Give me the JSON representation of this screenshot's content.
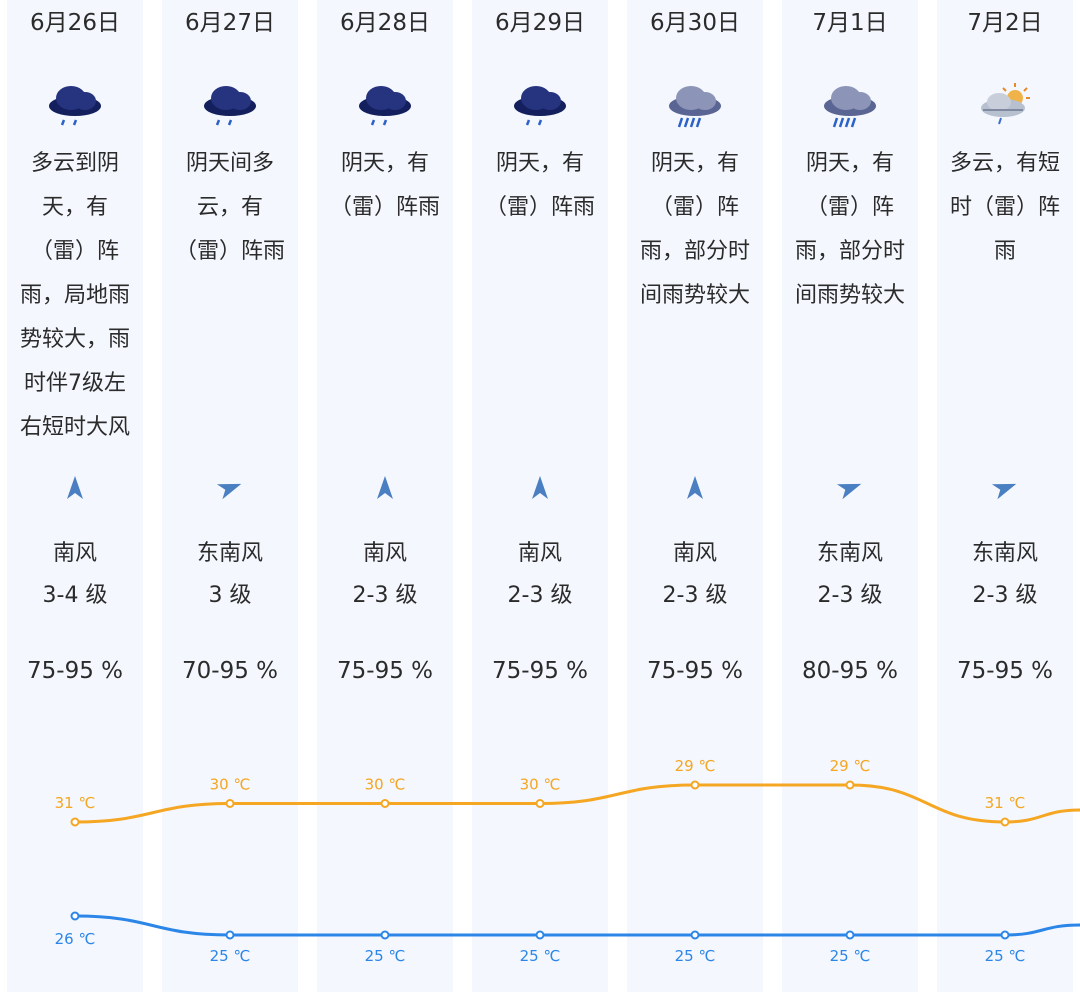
{
  "days": [
    {
      "date": "6月26日",
      "icon": "rain-cloud-icon",
      "desc": [
        "多云到阴",
        "天，有",
        "（雷）阵",
        "雨，局地雨",
        "势较大，雨",
        "时伴7级左",
        "右短时大风"
      ],
      "arrow_deg": 0,
      "wind_dir": "南风",
      "wind_level": "3-4 级",
      "humidity": "75-95 %"
    },
    {
      "date": "6月27日",
      "icon": "rain-cloud-icon",
      "desc": [
        "阴天间多",
        "云，有",
        "（雷）阵雨"
      ],
      "arrow_deg": 70,
      "wind_dir": "东南风",
      "wind_level": "3 级",
      "humidity": "70-95 %"
    },
    {
      "date": "6月28日",
      "icon": "rain-cloud-icon",
      "desc": [
        "阴天，有",
        "（雷）阵雨"
      ],
      "arrow_deg": 0,
      "wind_dir": "南风",
      "wind_level": "2-3 级",
      "humidity": "75-95 %"
    },
    {
      "date": "6月29日",
      "icon": "rain-cloud-icon",
      "desc": [
        "阴天，有",
        "（雷）阵雨"
      ],
      "arrow_deg": 0,
      "wind_dir": "南风",
      "wind_level": "2-3 级",
      "humidity": "75-95 %"
    },
    {
      "date": "6月30日",
      "icon": "heavy-rain-cloud-icon",
      "desc": [
        "阴天，有",
        "（雷）阵",
        "雨，部分时",
        "间雨势较大"
      ],
      "arrow_deg": 0,
      "wind_dir": "南风",
      "wind_level": "2-3 级",
      "humidity": "75-95 %"
    },
    {
      "date": "7月1日",
      "icon": "heavy-rain-cloud-icon",
      "desc": [
        "阴天，有",
        "（雷）阵",
        "雨，部分时",
        "间雨势较大"
      ],
      "arrow_deg": 70,
      "wind_dir": "东南风",
      "wind_level": "2-3 级",
      "humidity": "80-95 %"
    },
    {
      "date": "7月2日",
      "icon": "sun-cloud-rain-icon",
      "desc": [
        "多云，有短",
        "时（雷）阵",
        "雨"
      ],
      "arrow_deg": 70,
      "wind_dir": "东南风",
      "wind_level": "2-3 级",
      "humidity": "75-95 %"
    }
  ],
  "chart_data": {
    "type": "line",
    "categories": [
      "6月26日",
      "6月27日",
      "6月28日",
      "6月29日",
      "6月30日",
      "7月1日",
      "7月2日"
    ],
    "series": [
      {
        "values": [
          31,
          30,
          30,
          30,
          29,
          29,
          31
        ],
        "labels": [
          "31 ℃",
          "30 ℃",
          "30 ℃",
          "30 ℃",
          "29 ℃",
          "29 ℃",
          "31 ℃"
        ],
        "color": "#f5a623"
      },
      {
        "values": [
          26,
          25,
          25,
          25,
          25,
          25,
          25
        ],
        "labels": [
          "26 ℃",
          "25 ℃",
          "25 ℃",
          "25 ℃",
          "25 ℃",
          "25 ℃",
          "25 ℃"
        ],
        "color": "#2b86e8"
      }
    ]
  },
  "colors": {
    "column_bg": "#f4f7fd",
    "high_line": "#f5a623",
    "low_line": "#2b86e8",
    "arrow": "#4a7fc1",
    "cloud_dark": "#1e2a6e"
  }
}
